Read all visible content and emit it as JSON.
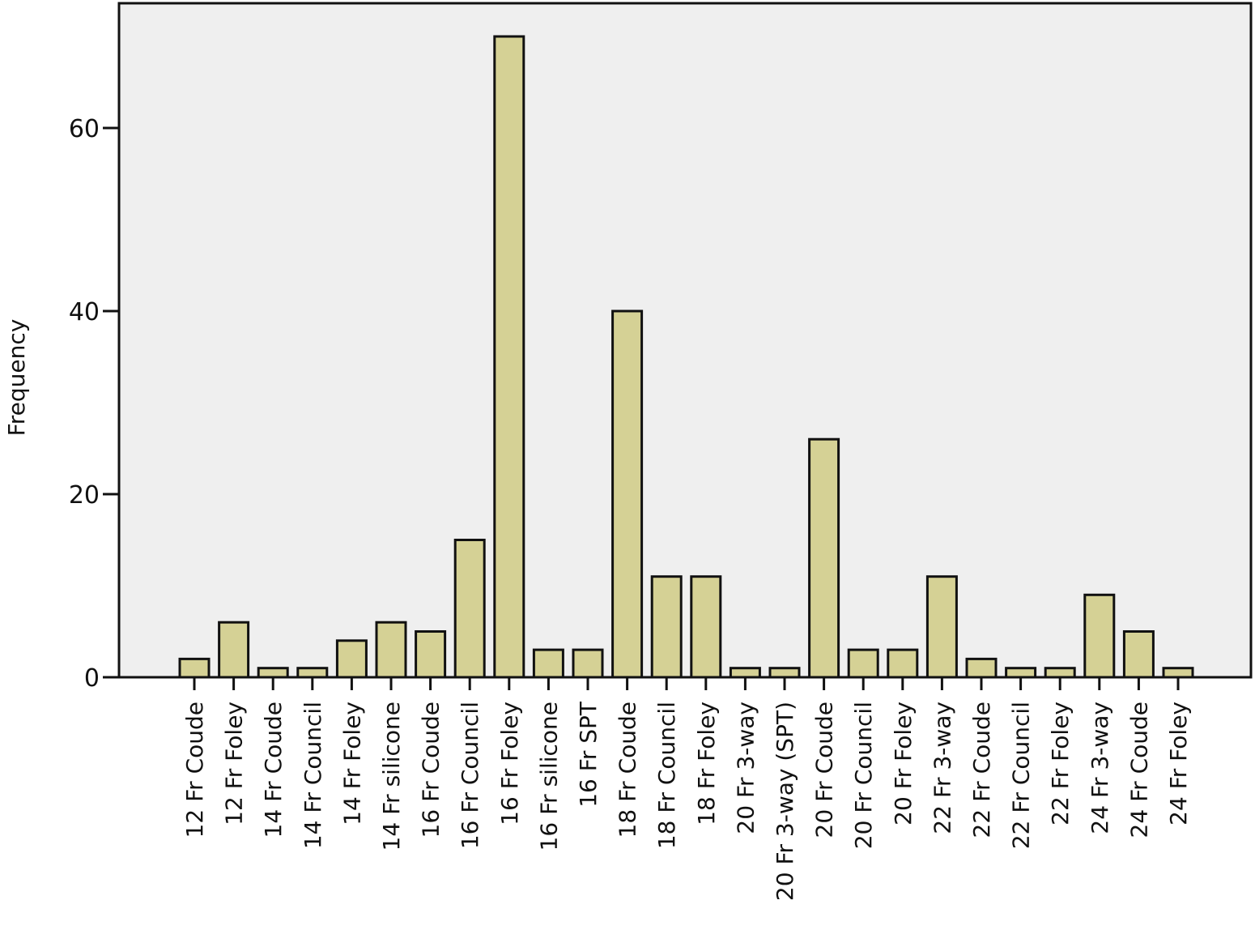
{
  "chart_data": {
    "type": "bar",
    "ylabel": "Frequency",
    "xlabel": "",
    "ylim": [
      0,
      70
    ],
    "yticks": [
      0,
      20,
      40,
      60
    ],
    "grid": false,
    "colors": {
      "bar_fill": "#d5d195",
      "bar_stroke": "#111111",
      "plot_bg": "#efefef"
    },
    "categories": [
      "12 Fr Coude",
      "12 Fr Foley",
      "14 Fr Coude",
      "14 Fr Council",
      "14 Fr Foley",
      "14 Fr silicone",
      "16 Fr Coude",
      "16 Fr Council",
      "16 Fr Foley",
      "16 Fr silicone",
      "16 Fr SPT",
      "18 Fr Coude",
      "18 Fr Council",
      "18 Fr Foley",
      "20 Fr 3-way",
      "20 Fr 3-way (SPT)",
      "20 Fr Coude",
      "20 Fr Council",
      "20 Fr Foley",
      "22 Fr 3-way",
      "22 Fr Coude",
      "22 Fr Council",
      "22 Fr Foley",
      "24 Fr 3-way",
      "24 Fr Coude",
      "24 Fr Foley"
    ],
    "values": [
      2,
      6,
      1,
      1,
      4,
      6,
      5,
      15,
      70,
      3,
      3,
      40,
      11,
      11,
      1,
      1,
      26,
      3,
      3,
      11,
      2,
      1,
      1,
      9,
      5,
      1
    ]
  }
}
